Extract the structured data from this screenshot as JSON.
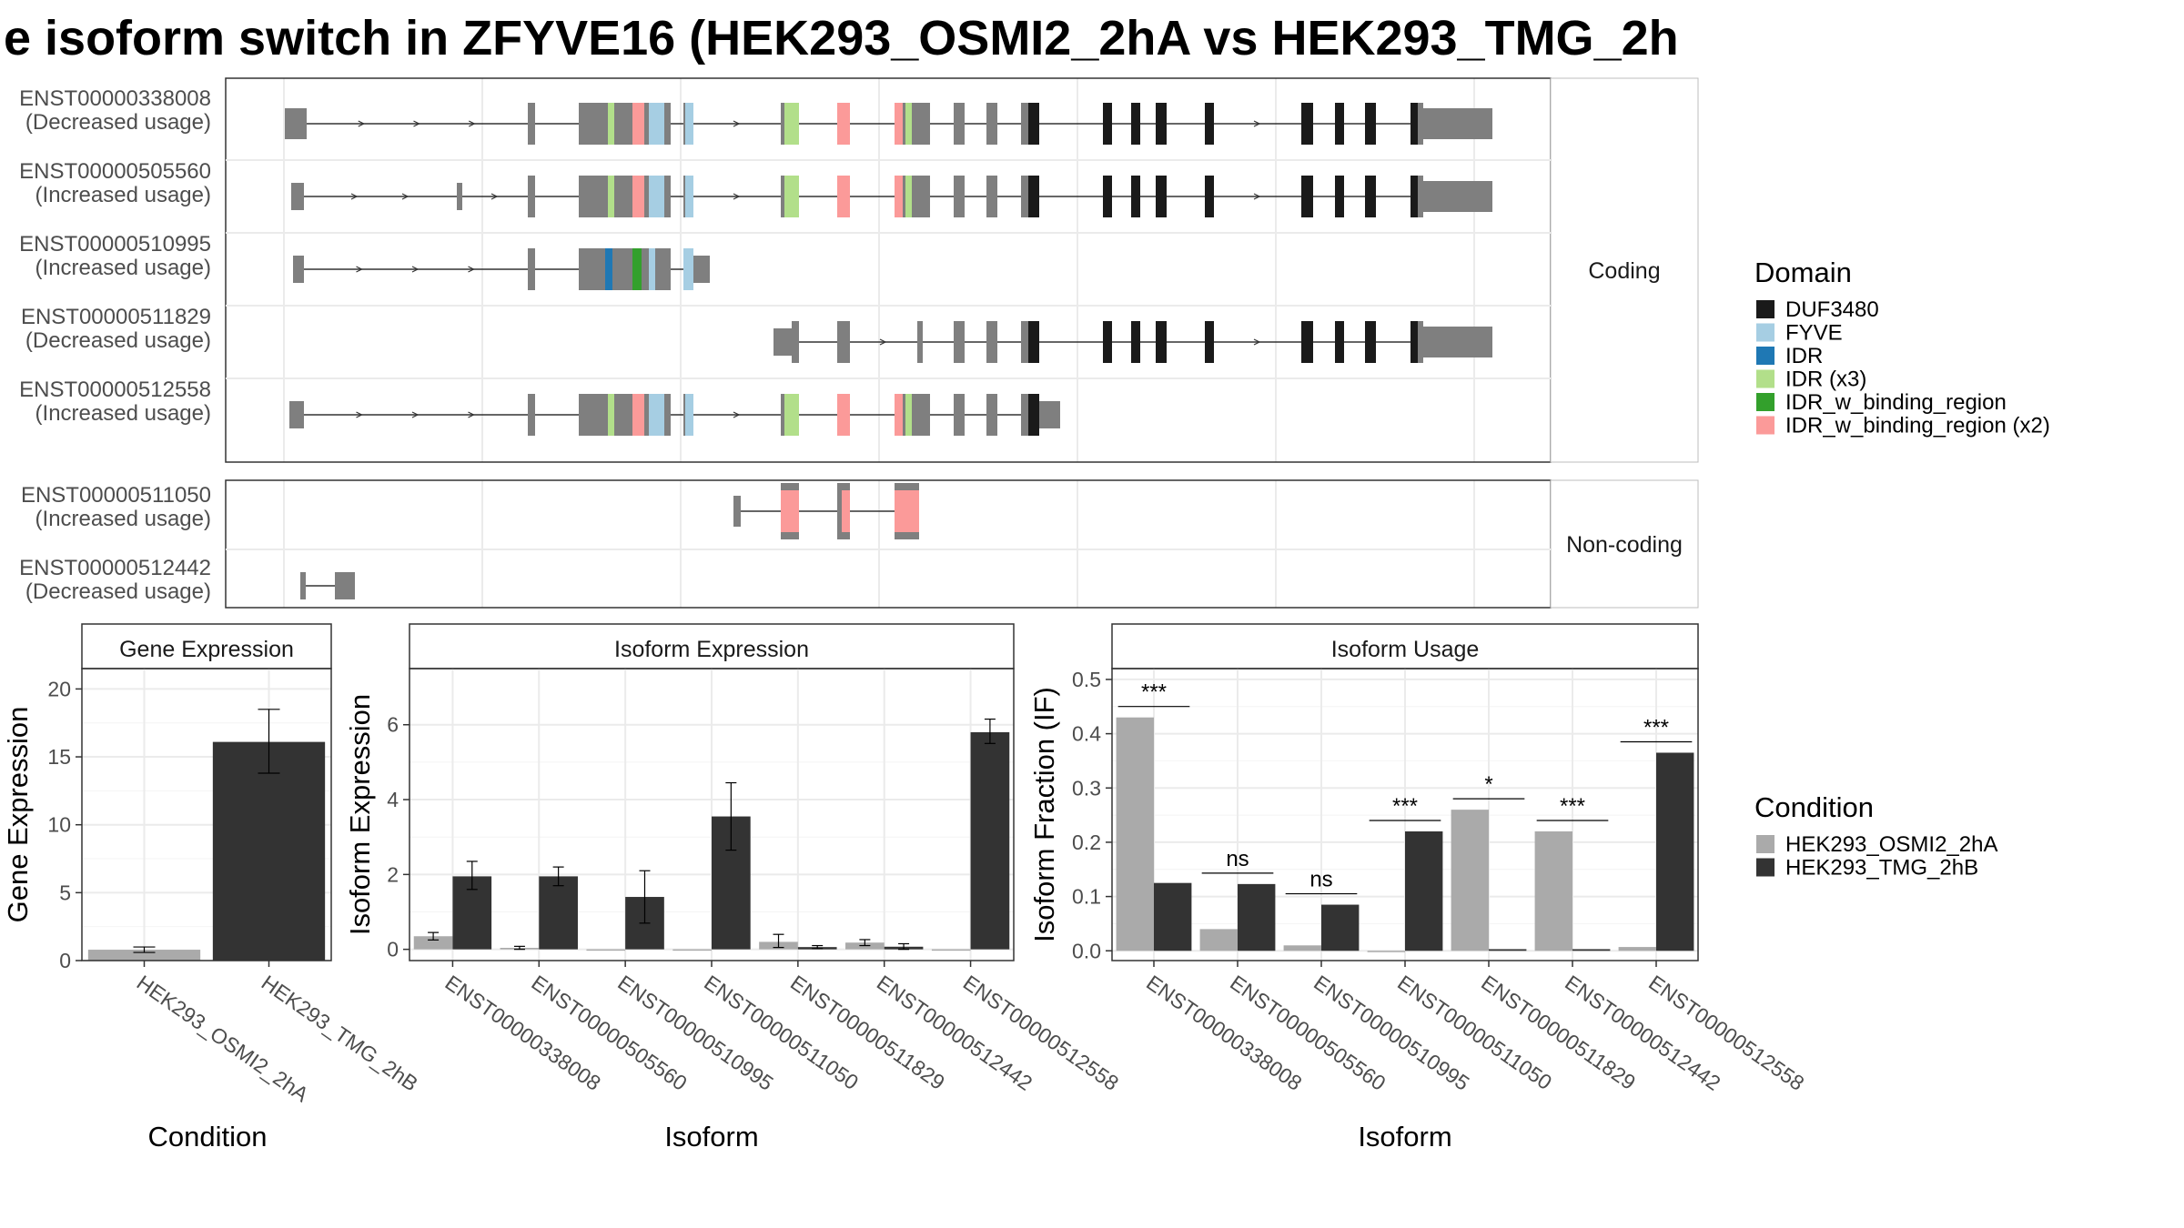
{
  "title": "e isoform switch in ZFYVE16 (HEK293_OSMI2_2hA vs HEK293_TMG_2h",
  "colors": {
    "DUF3480": "#1a1a1a",
    "FYVE": "#a6cee3",
    "IDR": "#1f78b4",
    "IDR (x3)": "#b2df8a",
    "IDR_w_binding_region": "#33a02c",
    "IDR_w_binding_region (x2)": "#fb9a99",
    "exon": "#7f7f7f",
    "HEK293_OSMI2_2hA": "#aaaaaa",
    "HEK293_TMG_2hB": "#333333"
  },
  "structure": {
    "coding_label": "Coding",
    "noncoding_label": "Non-coding",
    "coding": [
      {
        "id": "ENST00000338008",
        "usage": "(Decreased usage)"
      },
      {
        "id": "ENST00000505560",
        "usage": "(Increased usage)"
      },
      {
        "id": "ENST00000510995",
        "usage": "(Increased usage)"
      },
      {
        "id": "ENST00000511829",
        "usage": "(Decreased usage)"
      },
      {
        "id": "ENST00000512558",
        "usage": "(Increased usage)"
      }
    ],
    "noncoding": [
      {
        "id": "ENST00000511050",
        "usage": "(Increased usage)"
      },
      {
        "id": "ENST00000512442",
        "usage": "(Decreased usage)"
      }
    ]
  },
  "legends": {
    "domain_title": "Domain",
    "domain_items": [
      "DUF3480",
      "FYVE",
      "IDR",
      "IDR (x3)",
      "IDR_w_binding_region",
      "IDR_w_binding_region (x2)"
    ],
    "condition_title": "Condition",
    "condition_items": [
      "HEK293_OSMI2_2hA",
      "HEK293_TMG_2hB"
    ]
  },
  "chart_data": [
    {
      "type": "bar",
      "title": "Gene Expression",
      "xlabel": "Condition",
      "ylabel": "Gene Expression",
      "categories": [
        "HEK293_OSMI2_2hA",
        "HEK293_TMG_2hB"
      ],
      "values": [
        0.8,
        16.1
      ],
      "errors": [
        [
          0.6,
          1.0
        ],
        [
          13.8,
          18.5
        ]
      ],
      "ylim": [
        0,
        21.5
      ],
      "yticks": [
        "0",
        "5",
        "10",
        "15",
        "20"
      ]
    },
    {
      "type": "bar",
      "title": "Isoform Expression",
      "xlabel": "Isoform",
      "ylabel": "Isoform Expression",
      "categories": [
        "ENST00000338008",
        "ENST00000505560",
        "ENST00000510995",
        "ENST00000511050",
        "ENST00000511829",
        "ENST00000512442",
        "ENST00000512558"
      ],
      "series": [
        {
          "name": "HEK293_OSMI2_2hA",
          "values": [
            0.35,
            0.04,
            0.0,
            0.0,
            0.2,
            0.18,
            0.0
          ],
          "errors": [
            [
              0.25,
              0.45
            ],
            [
              0.0,
              0.08
            ],
            [
              0.0,
              0.0
            ],
            [
              0.0,
              0.0
            ],
            [
              0.05,
              0.4
            ],
            [
              0.1,
              0.26
            ],
            [
              0.0,
              0.0
            ]
          ]
        },
        {
          "name": "HEK293_TMG_2hB",
          "values": [
            1.95,
            1.95,
            1.4,
            3.55,
            0.06,
            0.07,
            5.8
          ],
          "errors": [
            [
              1.6,
              2.35
            ],
            [
              1.7,
              2.2
            ],
            [
              0.7,
              2.1
            ],
            [
              2.65,
              4.45
            ],
            [
              0.02,
              0.1
            ],
            [
              0.0,
              0.15
            ],
            [
              5.5,
              6.15
            ]
          ]
        }
      ],
      "ylim": [
        -0.3,
        7.5
      ],
      "yticks": [
        "0",
        "2",
        "4",
        "6"
      ]
    },
    {
      "type": "bar",
      "title": "Isoform Usage",
      "xlabel": "Isoform",
      "ylabel": "Isoform Fraction (IF)",
      "categories": [
        "ENST00000338008",
        "ENST00000505560",
        "ENST00000510995",
        "ENST00000511050",
        "ENST00000511829",
        "ENST00000512442",
        "ENST00000512558"
      ],
      "series": [
        {
          "name": "HEK293_OSMI2_2hA",
          "values": [
            0.43,
            0.04,
            0.01,
            0.0,
            0.26,
            0.22,
            0.007
          ]
        },
        {
          "name": "HEK293_TMG_2hB",
          "values": [
            0.125,
            0.123,
            0.085,
            0.22,
            0.003,
            0.003,
            0.365
          ]
        }
      ],
      "significance": [
        "***",
        "ns",
        "ns",
        "***",
        "*",
        "***",
        "***"
      ],
      "ylim": [
        -0.018,
        0.52
      ],
      "yticks": [
        "0.0",
        "0.1",
        "0.2",
        "0.3",
        "0.4",
        "0.5"
      ]
    }
  ]
}
